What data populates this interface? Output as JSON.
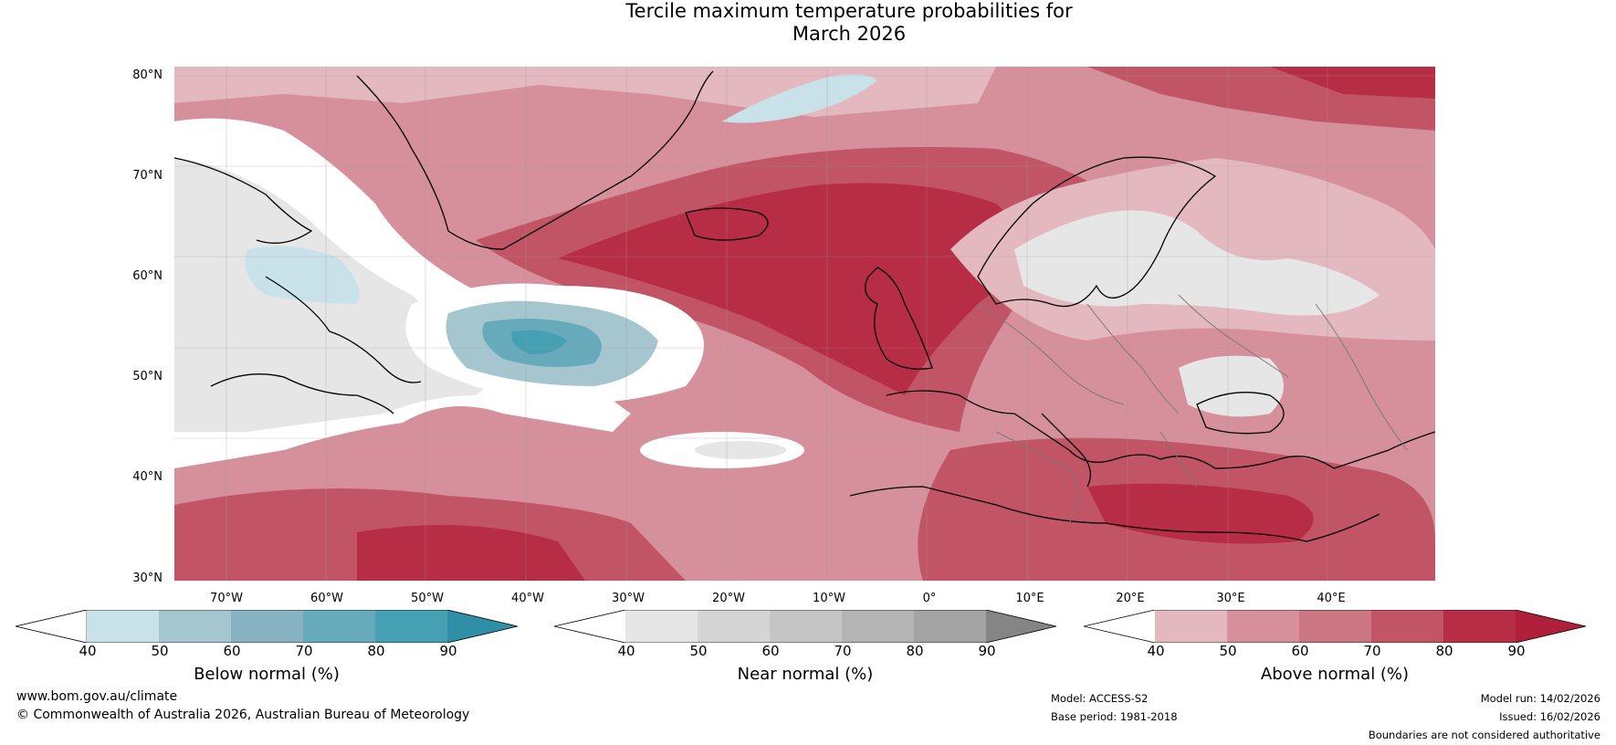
{
  "title_line1": "Tercile maximum temperature probabilities for",
  "title_line2": "March 2026",
  "lat_labels": [
    "80°N",
    "70°N",
    "60°N",
    "50°N",
    "40°N",
    "30°N"
  ],
  "lon_labels": [
    "70°W",
    "60°W",
    "50°W",
    "40°W",
    "30°W",
    "20°W",
    "10°W",
    "0°",
    "10°E",
    "20°E",
    "30°E",
    "40°E"
  ],
  "colorbars": [
    {
      "title": "Below normal (%)",
      "ticks": [
        "40",
        "50",
        "60",
        "70",
        "80",
        "90"
      ],
      "colors": [
        "#ffffff",
        "#c9e2e9",
        "#a6c6cf",
        "#88b3c2",
        "#66aabb",
        "#44a0b2",
        "#2f8fa6"
      ]
    },
    {
      "title": "Near normal (%)",
      "ticks": [
        "40",
        "50",
        "60",
        "70",
        "80",
        "90"
      ],
      "colors": [
        "#ffffff",
        "#e6e6e6",
        "#d5d5d5",
        "#c5c5c5",
        "#b4b4b4",
        "#a3a3a3",
        "#858585"
      ]
    },
    {
      "title": "Above normal (%)",
      "ticks": [
        "40",
        "50",
        "60",
        "70",
        "80",
        "90"
      ],
      "colors": [
        "#ffffff",
        "#e3b8bf",
        "#d5909b",
        "#cb7683",
        "#c25565",
        "#b82d46",
        "#b0203a"
      ]
    }
  ],
  "footer": {
    "website": "www.bom.gov.au/climate",
    "copyright": "© Commonwealth of Australia 2026, Australian Bureau of Meteorology",
    "model": "Model: ACCESS-S2",
    "base_period": "Base period: 1981-2018",
    "model_run": "Model run: 14/02/2026",
    "issued": "Issued: 16/02/2026",
    "disclaimer": "Boundaries are not considered authoritative"
  }
}
